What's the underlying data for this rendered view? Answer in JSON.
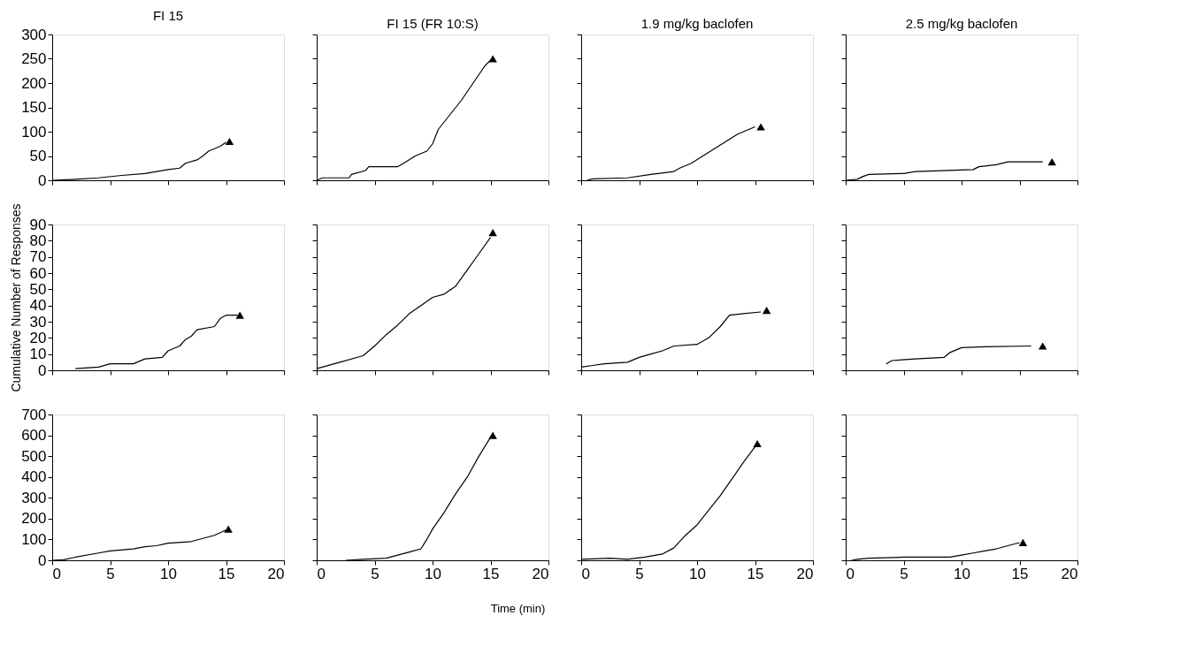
{
  "chart_data": [
    {
      "type": "line",
      "title": "FI 15",
      "xlim": [
        0,
        20
      ],
      "xticks": [
        0,
        5,
        10,
        15,
        20
      ],
      "ylim": [
        0,
        300
      ],
      "yticks": [
        0,
        50,
        100,
        150,
        200,
        250,
        300
      ],
      "tick_labels": "y",
      "grid": false,
      "series": [
        {
          "type": "line",
          "color": "#000000",
          "marker": "none",
          "x": [
            0,
            2,
            4,
            6,
            8,
            9,
            10,
            11,
            11.5,
            12.5,
            13,
            13.5,
            14.5,
            15
          ],
          "values": [
            0,
            2,
            5,
            10,
            14,
            18,
            22,
            25,
            35,
            42,
            50,
            60,
            70,
            78
          ]
        },
        {
          "type": "scatter",
          "color": "#000000",
          "marker": "triangle",
          "x": [
            15.3
          ],
          "values": [
            80
          ]
        }
      ]
    },
    {
      "type": "line",
      "title": "FI 15 (FR 10:S)",
      "xlim": [
        0,
        20
      ],
      "xticks": [
        0,
        5,
        10,
        15,
        20
      ],
      "ylim": [
        0,
        300
      ],
      "yticks": [
        0,
        50,
        100,
        150,
        200,
        250,
        300
      ],
      "tick_labels": false,
      "grid": false,
      "series": [
        {
          "type": "line",
          "color": "#000000",
          "marker": "none",
          "x": [
            0,
            0.5,
            2.8,
            3,
            4.2,
            4.5,
            7,
            7.5,
            8.5,
            9.5,
            10,
            10.5,
            11.5,
            12.5,
            13.5,
            14.5,
            15
          ],
          "values": [
            0,
            5,
            5,
            12,
            20,
            28,
            28,
            35,
            50,
            60,
            75,
            105,
            135,
            165,
            200,
            235,
            247
          ]
        },
        {
          "type": "scatter",
          "color": "#000000",
          "marker": "triangle",
          "x": [
            15.2
          ],
          "values": [
            250
          ]
        }
      ]
    },
    {
      "type": "line",
      "title": "1.9 mg/kg baclofen",
      "xlim": [
        0,
        20
      ],
      "xticks": [
        0,
        5,
        10,
        15,
        20
      ],
      "ylim": [
        0,
        300
      ],
      "yticks": [
        0,
        50,
        100,
        150,
        200,
        250,
        300
      ],
      "tick_labels": false,
      "grid": false,
      "series": [
        {
          "type": "line",
          "color": "#000000",
          "marker": "none",
          "x": [
            0.5,
            1,
            4,
            6,
            8,
            8.5,
            9.5,
            10.5,
            11.5,
            12.5,
            13.5,
            14.5,
            15
          ],
          "values": [
            0,
            3,
            5,
            12,
            18,
            25,
            35,
            50,
            65,
            80,
            95,
            105,
            110
          ]
        },
        {
          "type": "scatter",
          "color": "#000000",
          "marker": "triangle",
          "x": [
            15.5
          ],
          "values": [
            110
          ]
        }
      ]
    },
    {
      "type": "line",
      "title": "2.5 mg/kg baclofen",
      "xlim": [
        0,
        20
      ],
      "xticks": [
        0,
        5,
        10,
        15,
        20
      ],
      "ylim": [
        0,
        300
      ],
      "yticks": [
        0,
        50,
        100,
        150,
        200,
        250,
        300
      ],
      "tick_labels": false,
      "grid": false,
      "series": [
        {
          "type": "line",
          "color": "#000000",
          "marker": "none",
          "x": [
            0,
            1,
            1.5,
            2,
            5,
            6,
            11,
            11.5,
            13,
            14,
            17
          ],
          "values": [
            0,
            2,
            8,
            12,
            14,
            18,
            22,
            28,
            32,
            38,
            38
          ]
        },
        {
          "type": "scatter",
          "color": "#000000",
          "marker": "triangle",
          "x": [
            17.8
          ],
          "values": [
            38
          ]
        }
      ]
    },
    {
      "type": "line",
      "ylabel": "Cumulative Number of Responses",
      "xlim": [
        0,
        20
      ],
      "xticks": [
        0,
        5,
        10,
        15,
        20
      ],
      "ylim": [
        0,
        90
      ],
      "yticks": [
        0,
        10,
        20,
        30,
        40,
        50,
        60,
        70,
        80,
        90
      ],
      "tick_labels": "y",
      "grid": false,
      "series": [
        {
          "type": "line",
          "color": "#000000",
          "marker": "none",
          "x": [
            2,
            4,
            5,
            7,
            8,
            9.5,
            10,
            11,
            11.5,
            12,
            12.5,
            14,
            14.5,
            15,
            16
          ],
          "values": [
            1,
            2,
            4,
            4,
            7,
            8,
            12,
            15,
            19,
            21,
            25,
            27,
            32,
            34,
            34
          ]
        },
        {
          "type": "scatter",
          "color": "#000000",
          "marker": "triangle",
          "x": [
            16.2
          ],
          "values": [
            34
          ]
        }
      ]
    },
    {
      "type": "line",
      "xlim": [
        0,
        20
      ],
      "xticks": [
        0,
        5,
        10,
        15,
        20
      ],
      "ylim": [
        0,
        90
      ],
      "yticks": [
        0,
        10,
        20,
        30,
        40,
        50,
        60,
        70,
        80,
        90
      ],
      "tick_labels": false,
      "grid": false,
      "series": [
        {
          "type": "line",
          "color": "#000000",
          "marker": "none",
          "x": [
            0,
            2,
            4,
            5,
            6,
            7,
            8,
            9,
            10,
            11,
            12,
            13,
            14,
            15
          ],
          "values": [
            1,
            5,
            9,
            15,
            22,
            28,
            35,
            40,
            45,
            47,
            52,
            62,
            72,
            82
          ]
        },
        {
          "type": "scatter",
          "color": "#000000",
          "marker": "triangle",
          "x": [
            15.2
          ],
          "values": [
            85
          ]
        }
      ]
    },
    {
      "type": "line",
      "xlim": [
        0,
        20
      ],
      "xticks": [
        0,
        5,
        10,
        15,
        20
      ],
      "ylim": [
        0,
        90
      ],
      "yticks": [
        0,
        10,
        20,
        30,
        40,
        50,
        60,
        70,
        80,
        90
      ],
      "tick_labels": false,
      "grid": false,
      "series": [
        {
          "type": "line",
          "color": "#000000",
          "marker": "none",
          "x": [
            0,
            1,
            2,
            4,
            5,
            6,
            7,
            8,
            10,
            11,
            12,
            12.8,
            14,
            15.5
          ],
          "values": [
            2,
            3,
            4,
            5,
            8,
            10,
            12,
            15,
            16,
            20,
            27,
            34,
            35,
            36
          ]
        },
        {
          "type": "scatter",
          "color": "#000000",
          "marker": "triangle",
          "x": [
            16
          ],
          "values": [
            37
          ]
        }
      ]
    },
    {
      "type": "line",
      "xlim": [
        0,
        20
      ],
      "xticks": [
        0,
        5,
        10,
        15,
        20
      ],
      "ylim": [
        0,
        90
      ],
      "yticks": [
        0,
        10,
        20,
        30,
        40,
        50,
        60,
        70,
        80,
        90
      ],
      "tick_labels": false,
      "grid": false,
      "series": [
        {
          "type": "line",
          "color": "#000000",
          "marker": "none",
          "x": [
            3.5,
            4,
            6,
            8.5,
            9,
            10,
            12,
            16
          ],
          "values": [
            4,
            6,
            7,
            8,
            11,
            14,
            14.5,
            15
          ]
        },
        {
          "type": "scatter",
          "color": "#000000",
          "marker": "triangle",
          "x": [
            17
          ],
          "values": [
            15
          ]
        }
      ]
    },
    {
      "type": "line",
      "xlim": [
        0,
        20
      ],
      "xticks": [
        0,
        5,
        10,
        15,
        20
      ],
      "ylim": [
        0,
        700
      ],
      "yticks": [
        0,
        100,
        200,
        300,
        400,
        500,
        600,
        700
      ],
      "grid": false,
      "series": [
        {
          "type": "line",
          "color": "#000000",
          "marker": "none",
          "x": [
            0,
            1,
            2,
            4,
            5,
            7,
            8,
            9,
            10,
            12,
            13,
            14,
            15
          ],
          "values": [
            0,
            3,
            15,
            35,
            45,
            55,
            65,
            70,
            82,
            90,
            105,
            120,
            145
          ]
        },
        {
          "type": "scatter",
          "color": "#000000",
          "marker": "triangle",
          "x": [
            15.2
          ],
          "values": [
            150
          ]
        }
      ]
    },
    {
      "type": "line",
      "xlabel": "Time (min)",
      "xlim": [
        0,
        20
      ],
      "xticks": [
        0,
        5,
        10,
        15,
        20
      ],
      "ylim": [
        0,
        700
      ],
      "yticks": [
        0,
        100,
        200,
        300,
        400,
        500,
        600,
        700
      ],
      "tick_labels": "x",
      "grid": false,
      "series": [
        {
          "type": "line",
          "color": "#000000",
          "marker": "none",
          "x": [
            2.5,
            4,
            6,
            7,
            8,
            9,
            9.5,
            10,
            11,
            12,
            13,
            14,
            15
          ],
          "values": [
            0,
            5,
            10,
            25,
            40,
            55,
            100,
            150,
            230,
            320,
            400,
            500,
            590
          ]
        },
        {
          "type": "scatter",
          "color": "#000000",
          "marker": "triangle",
          "x": [
            15.2
          ],
          "values": [
            600
          ]
        }
      ]
    },
    {
      "type": "line",
      "xlim": [
        0,
        20
      ],
      "xticks": [
        0,
        5,
        10,
        15,
        20
      ],
      "ylim": [
        0,
        700
      ],
      "yticks": [
        0,
        100,
        200,
        300,
        400,
        500,
        600,
        700
      ],
      "tick_labels": "x",
      "grid": false,
      "series": [
        {
          "type": "line",
          "color": "#000000",
          "marker": "none",
          "x": [
            0,
            2.5,
            4,
            5.5,
            7,
            8,
            9,
            10,
            11,
            12,
            13,
            14,
            15
          ],
          "values": [
            5,
            10,
            5,
            15,
            30,
            60,
            120,
            170,
            240,
            310,
            390,
            470,
            545
          ]
        },
        {
          "type": "scatter",
          "color": "#000000",
          "marker": "triangle",
          "x": [
            15.2
          ],
          "values": [
            560
          ]
        }
      ]
    },
    {
      "type": "line",
      "xlim": [
        0,
        20
      ],
      "xticks": [
        0,
        5,
        10,
        15,
        20
      ],
      "ylim": [
        0,
        700
      ],
      "yticks": [
        0,
        100,
        200,
        300,
        400,
        500,
        600,
        700
      ],
      "tick_labels": "x",
      "grid": false,
      "series": [
        {
          "type": "line",
          "color": "#000000",
          "marker": "none",
          "x": [
            0.5,
            1,
            2,
            5,
            9,
            10,
            11,
            12,
            13,
            14,
            15
          ],
          "values": [
            0,
            5,
            10,
            15,
            15,
            25,
            35,
            45,
            55,
            70,
            85
          ]
        },
        {
          "type": "scatter",
          "color": "#000000",
          "marker": "triangle",
          "x": [
            15.3
          ],
          "values": [
            85
          ]
        }
      ]
    }
  ]
}
